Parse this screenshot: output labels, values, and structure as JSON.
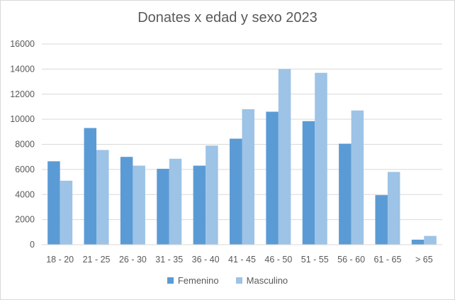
{
  "chart_data": {
    "type": "bar",
    "title": "Donates x edad y sexo 2023",
    "categories": [
      "18 - 20",
      "21 - 25",
      "26 - 30",
      "31 - 35",
      "36 - 40",
      "41 - 45",
      "46 - 50",
      "51 - 55",
      "56 - 60",
      "61 - 65",
      "> 65"
    ],
    "series": [
      {
        "name": "Femenino",
        "color": "#5b9bd5",
        "values": [
          6650,
          9300,
          7000,
          6050,
          6300,
          8450,
          10600,
          9850,
          8050,
          3950,
          400
        ]
      },
      {
        "name": "Masculino",
        "color": "#9dc3e6",
        "values": [
          5100,
          7550,
          6300,
          6850,
          7900,
          10800,
          14000,
          13700,
          10700,
          5800,
          700
        ]
      }
    ],
    "ylim": [
      0,
      16000
    ],
    "yticks": [
      "0",
      "2000",
      "4000",
      "6000",
      "8000",
      "10000",
      "12000",
      "14000",
      "16000"
    ],
    "xlabel": "",
    "ylabel": "",
    "grid": true,
    "legend_position": "bottom"
  }
}
